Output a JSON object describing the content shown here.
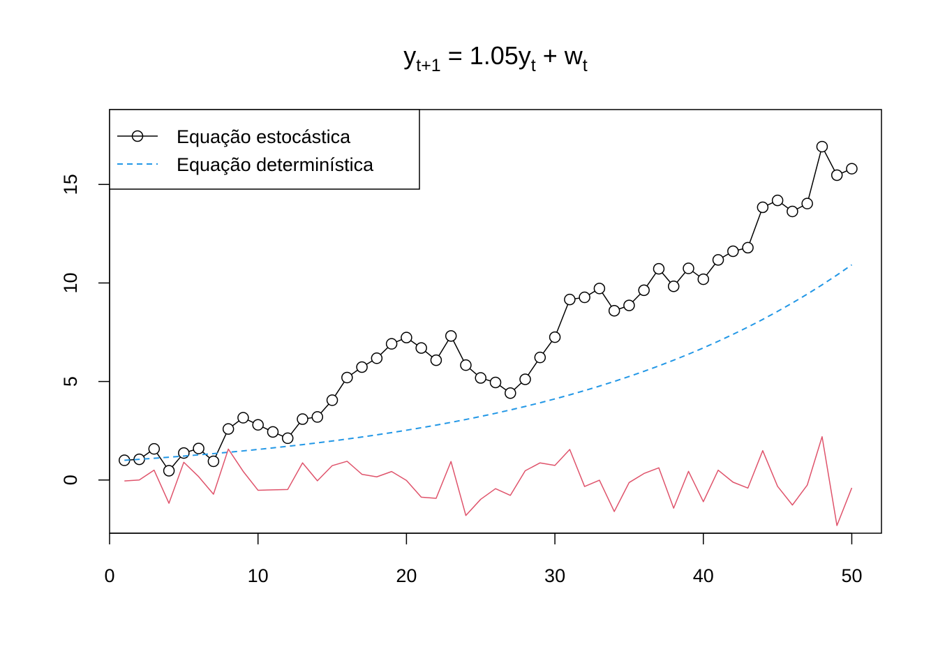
{
  "chart_data": {
    "type": "line",
    "title": {
      "main": "y",
      "sub1": "t+1",
      "mid": " = 1.05y",
      "sub2": "t",
      "mid2": " + w",
      "sub3": "t"
    },
    "xlabel": "",
    "ylabel": "",
    "xlim": [
      0,
      52
    ],
    "ylim": [
      -2.7,
      18.8
    ],
    "xticks": [
      "0",
      "10",
      "20",
      "30",
      "40",
      "50"
    ],
    "yticks": [
      "0",
      "5",
      "10",
      "15"
    ],
    "grid": false,
    "legend": {
      "position": "top-left",
      "entries": [
        {
          "label": "Equação estocástica",
          "color": "#000000",
          "style": "line-circle"
        },
        {
          "label": "Equação determinística",
          "color": "#2297E6",
          "style": "dashed"
        }
      ]
    },
    "series": [
      {
        "name": "Equação estocástica",
        "color": "#000000",
        "x": [
          1,
          2,
          3,
          4,
          5,
          6,
          7,
          8,
          9,
          10,
          11,
          12,
          13,
          14,
          15,
          16,
          17,
          18,
          19,
          20,
          21,
          22,
          23,
          24,
          25,
          26,
          27,
          28,
          29,
          30,
          31,
          32,
          33,
          34,
          35,
          36,
          37,
          38,
          39,
          40,
          41,
          42,
          43,
          44,
          45,
          46,
          47,
          48,
          49,
          50
        ],
        "values": [
          1.0,
          1.05,
          1.58,
          0.47,
          1.37,
          1.6,
          0.95,
          2.59,
          3.16,
          2.8,
          2.44,
          2.12,
          3.09,
          3.2,
          4.05,
          5.2,
          5.73,
          6.18,
          6.91,
          7.23,
          6.7,
          6.08,
          7.31,
          5.83,
          5.18,
          4.95,
          4.41,
          5.11,
          6.22,
          7.25,
          9.16,
          9.27,
          9.72,
          8.59,
          8.86,
          9.63,
          10.72,
          9.83,
          10.74,
          10.19,
          11.17,
          11.61,
          11.79,
          13.84,
          14.19,
          13.63,
          14.03,
          16.92,
          15.47,
          15.8
        ]
      },
      {
        "name": "Equação determinística",
        "color": "#2297E6",
        "x": [
          1,
          2,
          3,
          4,
          5,
          6,
          7,
          8,
          9,
          10,
          11,
          12,
          13,
          14,
          15,
          16,
          17,
          18,
          19,
          20,
          21,
          22,
          23,
          24,
          25,
          26,
          27,
          28,
          29,
          30,
          31,
          32,
          33,
          34,
          35,
          36,
          37,
          38,
          39,
          40,
          41,
          42,
          43,
          44,
          45,
          46,
          47,
          48,
          49,
          50
        ],
        "values": [
          1.0,
          1.05,
          1.1025,
          1.1576,
          1.2155,
          1.2763,
          1.3401,
          1.4071,
          1.4775,
          1.5513,
          1.6289,
          1.7103,
          1.7959,
          1.8856,
          1.9799,
          2.0789,
          2.1829,
          2.292,
          2.4066,
          2.527,
          2.6533,
          2.786,
          2.9253,
          3.0715,
          3.2251,
          3.3864,
          3.5557,
          3.7335,
          3.9201,
          4.1161,
          4.3219,
          4.538,
          4.7649,
          5.0032,
          5.2533,
          5.516,
          5.7918,
          6.0814,
          6.3855,
          6.7048,
          7.04,
          7.392,
          7.7616,
          8.1497,
          8.5572,
          8.985,
          9.4343,
          9.906,
          10.4013,
          10.9213
        ]
      },
      {
        "name": "",
        "color": "#DF536B",
        "x": [
          1,
          2,
          3,
          4,
          5,
          6,
          7,
          8,
          9,
          10,
          11,
          12,
          13,
          14,
          15,
          16,
          17,
          18,
          19,
          20,
          21,
          22,
          23,
          24,
          25,
          26,
          27,
          28,
          29,
          30,
          31,
          32,
          33,
          34,
          35,
          36,
          37,
          38,
          39,
          40,
          41,
          42,
          43,
          44,
          45,
          46,
          47,
          48,
          49,
          50
        ],
        "values": [
          -0.05,
          0.0,
          0.5,
          -1.18,
          0.9,
          0.17,
          -0.72,
          1.57,
          0.44,
          -0.52,
          -0.5,
          -0.48,
          0.87,
          -0.04,
          0.73,
          0.95,
          0.29,
          0.16,
          0.43,
          -0.02,
          -0.87,
          -0.93,
          0.94,
          -1.8,
          -0.98,
          -0.44,
          -0.78,
          0.47,
          0.87,
          0.74,
          1.55,
          -0.33,
          -0.01,
          -1.6,
          -0.13,
          0.33,
          0.62,
          -1.43,
          0.44,
          -1.1,
          0.5,
          -0.11,
          -0.41,
          1.49,
          -0.32,
          -1.27,
          -0.26,
          2.2,
          -2.31,
          -0.4
        ]
      }
    ]
  }
}
